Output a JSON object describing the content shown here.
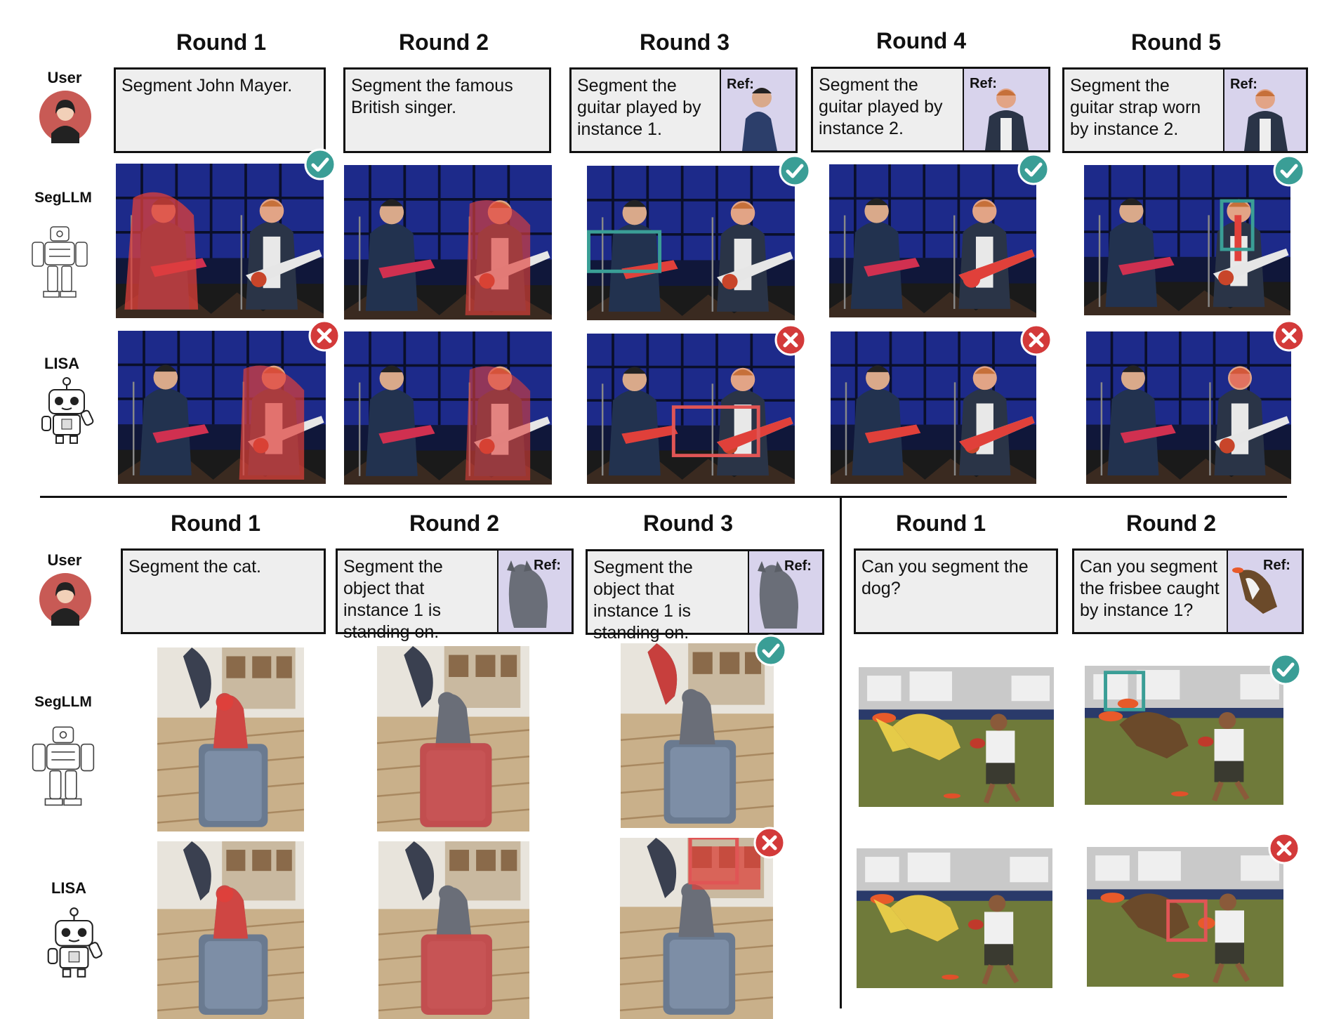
{
  "labels": {
    "user": "User",
    "segllm": "SegLLM",
    "lisa": "LISA",
    "ref": "Ref:"
  },
  "top": {
    "rounds": [
      "Round 1",
      "Round 2",
      "Round 3",
      "Round 4",
      "Round 5"
    ],
    "prompts": [
      "Segment John Mayer.",
      "Segment the famous British singer.",
      "Segment the guitar played by instance 1.",
      "Segment the guitar played by instance 2.",
      "Segment the guitar strap worn by instance 2."
    ]
  },
  "bottom_left": {
    "rounds": [
      "Round 1",
      "Round 2",
      "Round 3"
    ],
    "prompts": [
      "Segment the cat.",
      "Segment the object that instance 1 is standing on.",
      "Segment the object that instance 1 is standing on."
    ]
  },
  "bottom_right": {
    "rounds": [
      "Round 1",
      "Round 2"
    ],
    "prompts": [
      "Can you segment the dog?",
      "Can you segment the frisbee caught by instance 1?"
    ]
  },
  "colors": {
    "correct": "#3a9e96",
    "wrong": "#d33a3a",
    "mask_red": "#e0403a",
    "mask_yellow": "#f2d44a",
    "ref_bg": "#d8d3ec"
  }
}
